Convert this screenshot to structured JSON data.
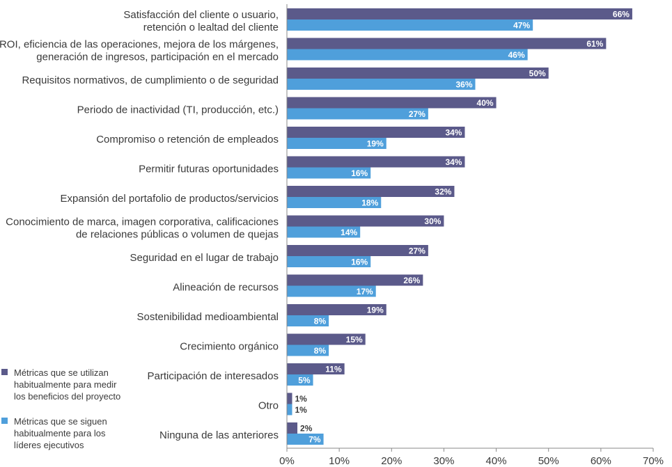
{
  "chart_data": {
    "type": "bar",
    "orientation": "horizontal",
    "categories": [
      [
        "Satisfacción del cliente o usuario,",
        "retención o lealtad del cliente"
      ],
      [
        "ROI, eficiencia de las operaciones, mejora de los márgenes,",
        "generación de ingresos, participación en el mercado"
      ],
      [
        "Requisitos normativos, de cumplimiento o de seguridad"
      ],
      [
        "Periodo de inactividad (TI, producción, etc.)"
      ],
      [
        "Compromiso o retención de empleados"
      ],
      [
        "Permitir futuras oportunidades"
      ],
      [
        "Expansión del portafolio de productos/servicios"
      ],
      [
        "Conocimiento de marca, imagen corporativa, calificaciones",
        "de relaciones públicas o volumen de quejas"
      ],
      [
        "Seguridad en el lugar de trabajo"
      ],
      [
        "Alineación de recursos"
      ],
      [
        "Sostenibilidad medioambiental"
      ],
      [
        "Crecimiento orgánico"
      ],
      [
        "Participación de interesados"
      ],
      [
        "Otro"
      ],
      [
        "Ninguna de las anteriores"
      ]
    ],
    "series": [
      {
        "name": [
          "Métricas que se utilizan",
          "habitualmente para medir",
          "los beneficios del proyecto"
        ],
        "color": "#5b5a8a",
        "values": [
          66,
          61,
          50,
          40,
          34,
          34,
          32,
          30,
          27,
          26,
          19,
          15,
          11,
          1,
          2
        ],
        "labels": [
          "66%",
          "61%",
          "50%",
          "40%",
          "34%",
          "34%",
          "32%",
          "30%",
          "27%",
          "26%",
          "19%",
          "15%",
          "11%",
          "1%",
          "2%"
        ]
      },
      {
        "name": [
          "Métricas que se siguen",
          "habitualmente para los",
          "líderes ejecutivos"
        ],
        "color": "#4f9fdb",
        "values": [
          47,
          46,
          36,
          27,
          19,
          16,
          18,
          14,
          16,
          17,
          8,
          8,
          5,
          1,
          7
        ],
        "labels": [
          "47%",
          "46%",
          "36%",
          "27%",
          "19%",
          "16%",
          "18%",
          "14%",
          "16%",
          "17%",
          "8%",
          "8%",
          "5%",
          "1%",
          "7%"
        ]
      }
    ],
    "xlim": [
      0,
      70
    ],
    "xticks": [
      "0%",
      "10%",
      "20%",
      "30%",
      "40%",
      "50%",
      "60%",
      "70%"
    ],
    "grid": false,
    "legend_position": "bottom-left",
    "xlabel": "",
    "ylabel": "",
    "title": ""
  }
}
